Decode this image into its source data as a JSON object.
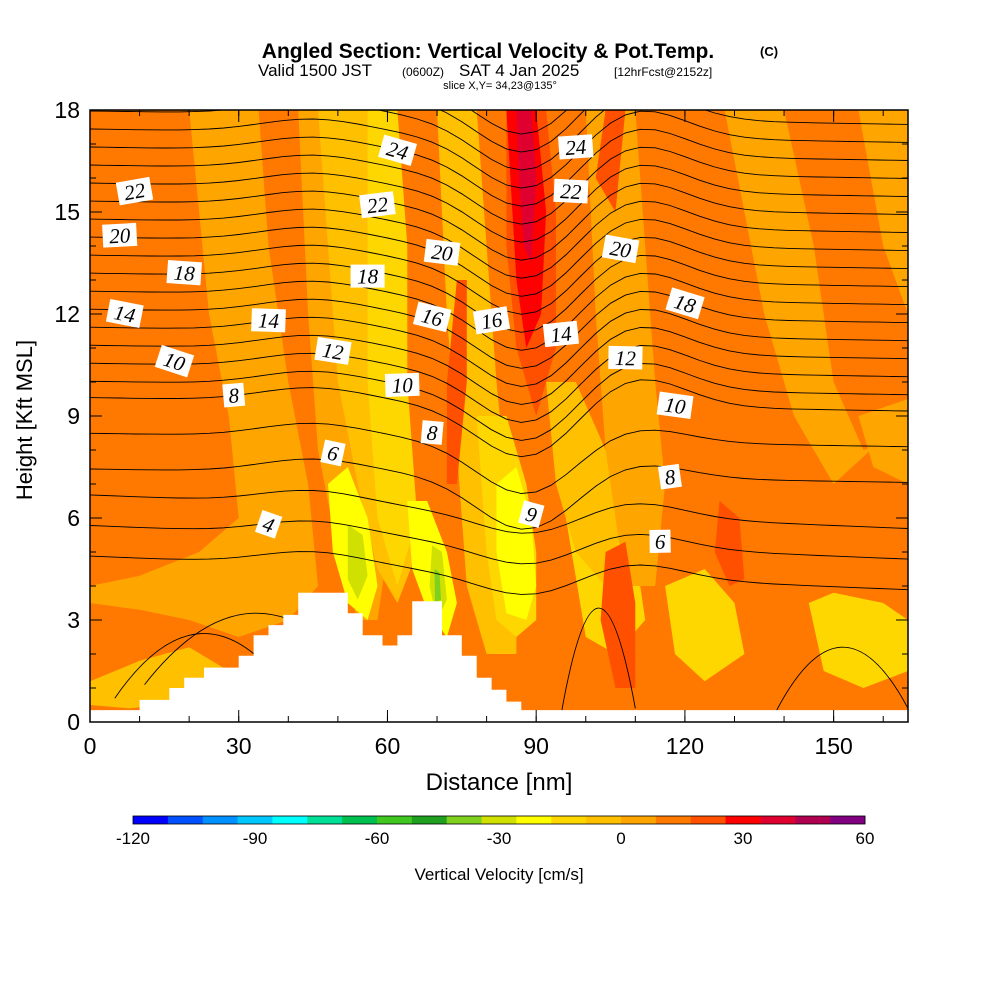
{
  "chart_data": {
    "type": "heatmap",
    "title": {
      "main": "Angled Section: Vertical Velocity & Pot.Temp.",
      "main_unit": "(C)",
      "valid_a": "Valid 1500 JST",
      "valid_b": "(0600Z)",
      "valid_c": "SAT 4 Jan 2025",
      "valid_d": "[12hrFcst@2152z]",
      "slice": "slice X,Y= 34,23@135°"
    },
    "xlabel": "Distance [nm]",
    "ylabel": "Height [Kft MSL]",
    "xlim": [
      0,
      165
    ],
    "ylim": [
      0,
      18
    ],
    "x_ticks": [
      0,
      30,
      60,
      90,
      120,
      150
    ],
    "x_tick_labels": [
      "0",
      "30",
      "60",
      "90",
      "120",
      "150"
    ],
    "y_ticks": [
      0,
      3,
      6,
      9,
      12,
      15,
      18
    ],
    "y_tick_labels": [
      "0",
      "3",
      "6",
      "9",
      "12",
      "15",
      "18"
    ],
    "colorbar": {
      "label": "Vertical Velocity [cm/s]",
      "min": -120,
      "max": 60,
      "step": 10,
      "tick_values": [
        -120,
        -90,
        -60,
        -30,
        0,
        30,
        60
      ],
      "tick_labels": [
        "-120",
        "-90",
        "-60",
        "-30",
        "0",
        "30",
        "60"
      ],
      "colors": [
        "#0000ff",
        "#0050ff",
        "#0090ff",
        "#00c8ff",
        "#00ffff",
        "#00e096",
        "#00c050",
        "#40c820",
        "#20a020",
        "#80d020",
        "#d0e000",
        "#ffff00",
        "#ffd700",
        "#ffc000",
        "#ffa500",
        "#ff7800",
        "#ff5000",
        "#ff0000",
        "#e00030",
        "#b00050",
        "#800080"
      ]
    },
    "theta_contours": {
      "unit": "C",
      "levels": [
        3,
        4,
        5,
        6,
        7,
        8,
        9,
        10,
        11,
        12,
        13,
        14,
        15,
        16,
        17,
        18,
        19,
        20,
        21,
        22,
        23,
        24,
        25,
        26
      ],
      "labels": [
        {
          "text": "22",
          "x": 9,
          "y": 15.6
        },
        {
          "text": "20",
          "x": 6,
          "y": 14.3
        },
        {
          "text": "18",
          "x": 19,
          "y": 13.2
        },
        {
          "text": "14",
          "x": 7,
          "y": 12.0
        },
        {
          "text": "10",
          "x": 17,
          "y": 10.6
        },
        {
          "text": "8",
          "x": 29,
          "y": 9.6
        },
        {
          "text": "14",
          "x": 36,
          "y": 11.8
        },
        {
          "text": "12",
          "x": 49,
          "y": 10.9
        },
        {
          "text": "24",
          "x": 62,
          "y": 16.8
        },
        {
          "text": "22",
          "x": 58,
          "y": 15.2
        },
        {
          "text": "18",
          "x": 56,
          "y": 13.1
        },
        {
          "text": "20",
          "x": 71,
          "y": 13.8
        },
        {
          "text": "16",
          "x": 69,
          "y": 11.9
        },
        {
          "text": "16",
          "x": 81,
          "y": 11.8
        },
        {
          "text": "10",
          "x": 63,
          "y": 9.9
        },
        {
          "text": "8",
          "x": 69,
          "y": 8.5
        },
        {
          "text": "6",
          "x": 49,
          "y": 7.9
        },
        {
          "text": "4",
          "x": 36,
          "y": 5.8
        },
        {
          "text": "24",
          "x": 98,
          "y": 16.9
        },
        {
          "text": "22",
          "x": 97,
          "y": 15.6
        },
        {
          "text": "20",
          "x": 107,
          "y": 13.9
        },
        {
          "text": "18",
          "x": 120,
          "y": 12.3
        },
        {
          "text": "14",
          "x": 95,
          "y": 11.4
        },
        {
          "text": "12",
          "x": 108,
          "y": 10.7
        },
        {
          "text": "10",
          "x": 118,
          "y": 9.3
        },
        {
          "text": "9",
          "x": 89,
          "y": 6.1
        },
        {
          "text": "8",
          "x": 117,
          "y": 7.2
        },
        {
          "text": "6",
          "x": 115,
          "y": 5.3
        }
      ]
    },
    "terrain": [
      [
        0,
        0.35
      ],
      [
        10,
        0.35
      ],
      [
        10,
        0.65
      ],
      [
        16,
        0.65
      ],
      [
        16,
        1.0
      ],
      [
        19,
        1.0
      ],
      [
        19,
        1.3
      ],
      [
        23,
        1.3
      ],
      [
        23,
        1.6
      ],
      [
        30,
        1.6
      ],
      [
        30,
        1.95
      ],
      [
        33,
        1.95
      ],
      [
        33,
        2.55
      ],
      [
        36,
        2.55
      ],
      [
        36,
        2.85
      ],
      [
        39,
        2.85
      ],
      [
        39,
        3.15
      ],
      [
        42,
        3.15
      ],
      [
        42,
        3.8
      ],
      [
        52,
        3.8
      ],
      [
        52,
        3.2
      ],
      [
        55,
        3.2
      ],
      [
        55,
        2.55
      ],
      [
        59,
        2.55
      ],
      [
        59,
        2.25
      ],
      [
        62,
        2.25
      ],
      [
        62,
        2.55
      ],
      [
        65,
        2.55
      ],
      [
        65,
        3.55
      ],
      [
        71,
        3.55
      ],
      [
        71,
        2.55
      ],
      [
        75,
        2.55
      ],
      [
        75,
        1.95
      ],
      [
        78,
        1.95
      ],
      [
        78,
        1.3
      ],
      [
        81,
        1.3
      ],
      [
        81,
        0.95
      ],
      [
        84,
        0.95
      ],
      [
        84,
        0.6
      ],
      [
        87,
        0.6
      ],
      [
        87,
        0.35
      ],
      [
        165,
        0.35
      ],
      [
        165,
        0
      ],
      [
        0,
        0
      ]
    ]
  }
}
